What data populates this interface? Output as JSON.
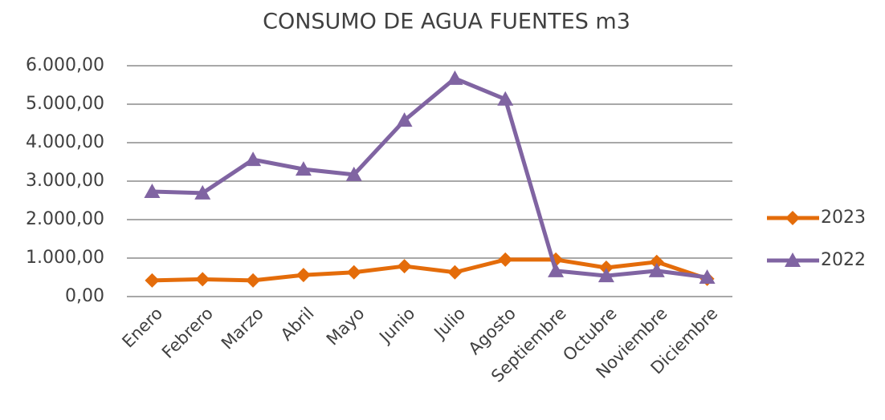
{
  "chart_data": {
    "type": "line",
    "title": "CONSUMO DE AGUA FUENTES m3",
    "categories": [
      "Enero",
      "Febrero",
      "Marzo",
      "Abril",
      "Mayo",
      "Junio",
      "Julio",
      "Agosto",
      "Septiembre",
      "Octubre",
      "Noviembre",
      "Diciembre"
    ],
    "series": [
      {
        "name": "2023",
        "color": "#e46c0a",
        "marker": "diamond",
        "values": [
          420,
          450,
          420,
          560,
          630,
          790,
          630,
          960,
          960,
          750,
          900,
          460
        ]
      },
      {
        "name": "2022",
        "color": "#8064a2",
        "marker": "triangle",
        "values": [
          2730,
          2690,
          3560,
          3310,
          3170,
          4580,
          5670,
          5130,
          670,
          540,
          670,
          500
        ]
      }
    ],
    "ylim": [
      0,
      6000
    ],
    "yticks": [
      {
        "value": 0,
        "label": "0,00"
      },
      {
        "value": 1000,
        "label": "1.000,00"
      },
      {
        "value": 2000,
        "label": "2.000,00"
      },
      {
        "value": 3000,
        "label": "3.000,00"
      },
      {
        "value": 4000,
        "label": "4.000,00"
      },
      {
        "value": 5000,
        "label": "5.000,00"
      },
      {
        "value": 6000,
        "label": "6.000,00"
      }
    ],
    "grid": true,
    "legend": "right"
  }
}
